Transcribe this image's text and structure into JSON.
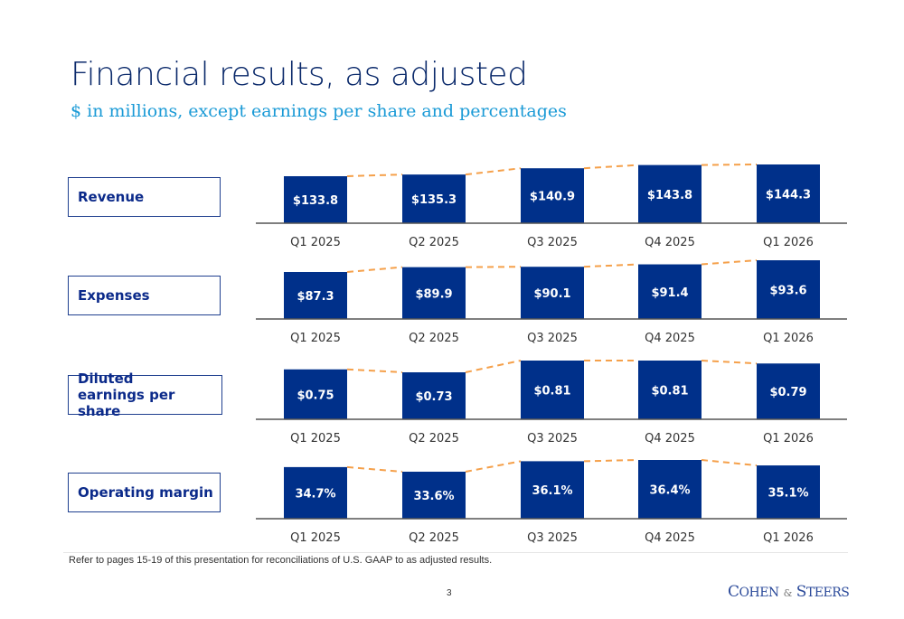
{
  "title": "Financial results, as adjusted",
  "subtitle": "$ in millions, except earnings per share and percentages",
  "footnote": "Refer to pages 15-19 of this presentation for reconciliations of U.S. GAAP to as adjusted results.",
  "page_number": "3",
  "logo_text": "COHEN & STEERS",
  "colors": {
    "bar": "#00308a",
    "trend_line": "#f5a04a",
    "axis": "#555555",
    "label_text": "#0b2a8a"
  },
  "chart_data": [
    {
      "type": "bar",
      "title": "Revenue",
      "categories": [
        "Q1 2025",
        "Q2 2025",
        "Q3 2025",
        "Q4 2025",
        "Q1 2026"
      ],
      "values": [
        133.8,
        135.3,
        140.9,
        143.8,
        144.3
      ],
      "data_labels": [
        "$133.8",
        "$135.3",
        "$140.9",
        "$143.8",
        "$144.3"
      ],
      "grid": false
    },
    {
      "type": "bar",
      "title": "Expenses",
      "categories": [
        "Q1 2025",
        "Q2 2025",
        "Q3 2025",
        "Q4 2025",
        "Q1 2026"
      ],
      "values": [
        87.3,
        89.9,
        90.1,
        91.4,
        93.6
      ],
      "data_labels": [
        "$87.3",
        "$89.9",
        "$90.1",
        "$91.4",
        "$93.6"
      ],
      "grid": false
    },
    {
      "type": "bar",
      "title": "Diluted earnings per share",
      "categories": [
        "Q1 2025",
        "Q2 2025",
        "Q3 2025",
        "Q4 2025",
        "Q1 2026"
      ],
      "values": [
        0.75,
        0.73,
        0.81,
        0.81,
        0.79
      ],
      "data_labels": [
        "$0.75",
        "$0.73",
        "$0.81",
        "$0.81",
        "$0.79"
      ],
      "grid": false
    },
    {
      "type": "bar",
      "title": "Operating margin",
      "categories": [
        "Q1 2025",
        "Q2 2025",
        "Q3 2025",
        "Q4 2025",
        "Q1 2026"
      ],
      "values": [
        34.7,
        33.6,
        36.1,
        36.4,
        35.1
      ],
      "data_labels": [
        "34.7%",
        "33.6%",
        "36.1%",
        "36.4%",
        "35.1%"
      ],
      "grid": false
    }
  ]
}
